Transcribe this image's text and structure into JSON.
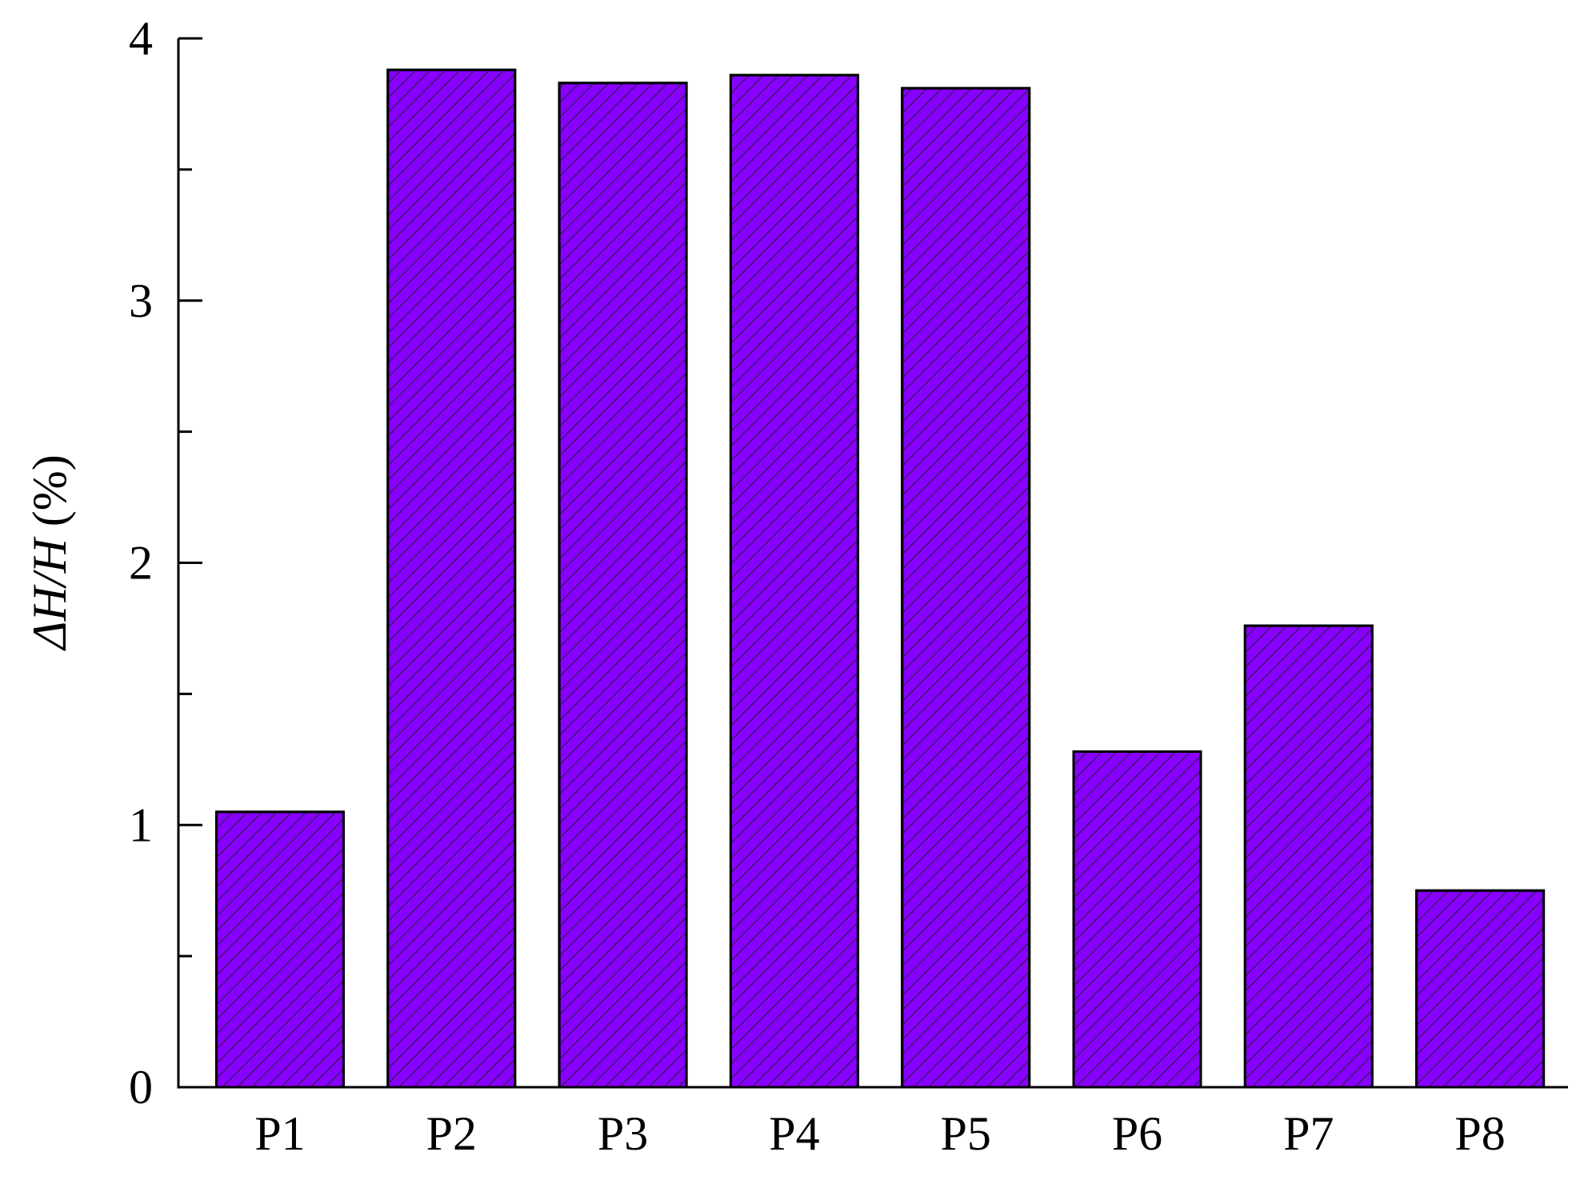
{
  "chart_data": {
    "type": "bar",
    "y_label_symbol": "ΔH/H",
    "y_label_unit": "(%)",
    "categories": [
      "P1",
      "P2",
      "P3",
      "P4",
      "P5",
      "P6",
      "P7",
      "P8"
    ],
    "values": [
      1.05,
      3.88,
      3.83,
      3.86,
      3.81,
      1.28,
      1.76,
      0.75
    ],
    "color": "#8800ff",
    "hatch": true,
    "ylim": [
      0,
      4
    ],
    "yticks": [
      0,
      1,
      2,
      3,
      4
    ],
    "yminorticks": [
      0.5,
      1.5,
      2.5,
      3.5
    ],
    "grid": false
  }
}
